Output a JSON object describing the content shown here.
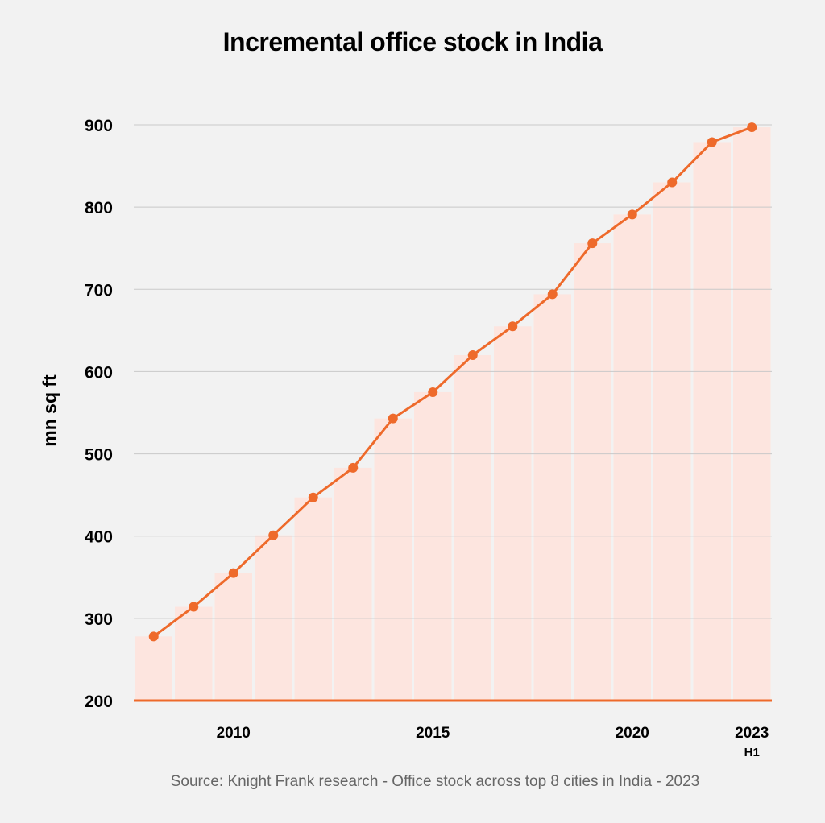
{
  "chart_data": {
    "type": "line",
    "title": "Incremental office stock in India",
    "ylabel": "mn sq ft",
    "xlabel": "",
    "source": "Source: Knight Frank research - Office stock across top 8 cities in India - 2023",
    "ylim": [
      200,
      900
    ],
    "yticks": [
      200,
      300,
      400,
      500,
      600,
      700,
      800,
      900
    ],
    "x": [
      "2008",
      "2009",
      "2010",
      "2011",
      "2012",
      "2013",
      "2014",
      "2015",
      "2016",
      "2017",
      "2018",
      "2019",
      "2020",
      "2021",
      "2022",
      "2023 H1"
    ],
    "x_tick_labels": [
      {
        "x": "2010",
        "label": "2010",
        "sub": ""
      },
      {
        "x": "2015",
        "label": "2015",
        "sub": ""
      },
      {
        "x": "2020",
        "label": "2020",
        "sub": ""
      },
      {
        "x": "2023 H1",
        "label": "2023",
        "sub": "H1"
      }
    ],
    "series": [
      {
        "values": [
          278,
          314,
          355,
          401,
          447,
          483,
          543,
          575,
          620,
          655,
          694,
          756,
          791,
          830,
          879,
          897
        ]
      }
    ],
    "grid": true,
    "colors": {
      "line": "#ee6a2b",
      "bar": "#fde5df",
      "grid": "#c9c9c9",
      "baseline": "#ee6a2b",
      "background": "#f2f2f2"
    }
  }
}
